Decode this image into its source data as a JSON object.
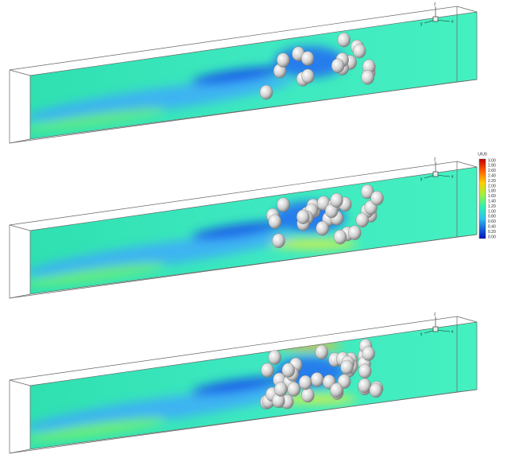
{
  "colorbar": {
    "title": "U/U0",
    "labels": [
      "3.00",
      "2.80",
      "2.60",
      "2.40",
      "2.20",
      "2.00",
      "1.80",
      "1.60",
      "1.40",
      "1.20",
      "1.00",
      "0.80",
      "0.60",
      "0.40",
      "0.20",
      "0.00"
    ]
  },
  "triad": {
    "z": "z",
    "x": "x",
    "y": "y"
  }
}
